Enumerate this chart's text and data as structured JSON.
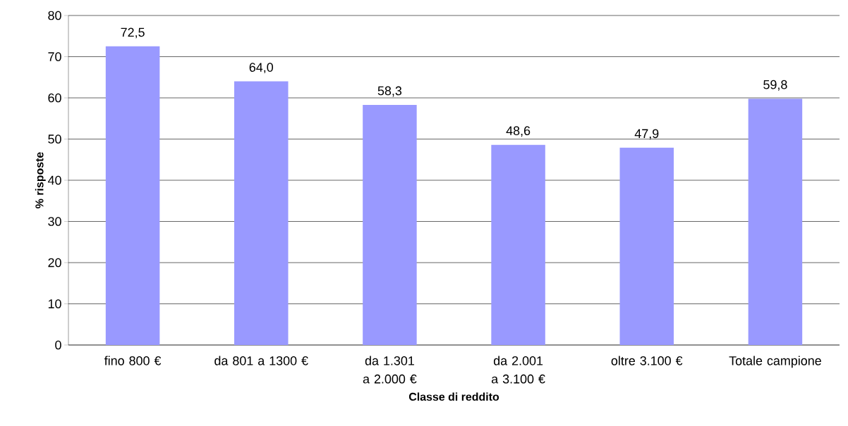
{
  "chart_data": {
    "type": "bar",
    "xlabel": "Classe di reddito",
    "ylabel": "% risposte",
    "categories": [
      "fino 800 €",
      "da 801 a 1300 €",
      "da 1.301 a 2.000 €",
      "da 2.001 a 3.100 €",
      "oltre 3.100 €",
      "Totale campione"
    ],
    "values": [
      72.5,
      64.0,
      58.3,
      48.6,
      47.9,
      59.8
    ],
    "value_labels": [
      "72,5",
      "64,0",
      "58,3",
      "48,6",
      "47,9",
      "59,8"
    ],
    "color": "#9999ff",
    "ylim": [
      0,
      80
    ],
    "yticks": [
      0,
      10,
      20,
      30,
      40,
      50,
      60,
      70,
      80
    ],
    "grid": "y"
  }
}
